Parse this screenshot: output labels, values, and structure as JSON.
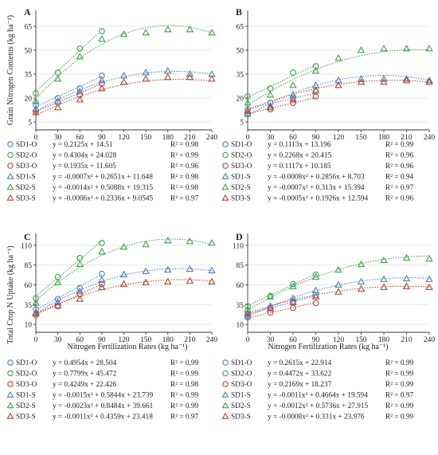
{
  "figure": {
    "ylabel_top": "Grain Nitrogen Contents (kg ha⁻¹)",
    "ylabel_bottom": "Total Crop N Uptake (kg ha⁻¹)",
    "xlabel": "Nitrogen Fertilization Rates (kg ha⁻¹)"
  },
  "colors": {
    "SD1": "#4a7fc1",
    "SD2": "#3fa34d",
    "SD3": "#b5462f"
  },
  "markers": {
    "O": "circle",
    "S": "triangle"
  },
  "chart_data": [
    {
      "panel": "A",
      "type": "scatter",
      "xlim": [
        0,
        240
      ],
      "ylim": [
        0,
        75
      ],
      "xticks": [
        0,
        30,
        60,
        90,
        120,
        150,
        180,
        210,
        240
      ],
      "yticks": [
        5,
        20,
        35,
        50,
        65
      ],
      "series": [
        {
          "name": "SD1-O",
          "color": "SD1",
          "marker": "O",
          "x": [
            0,
            30,
            60,
            90
          ],
          "y": [
            15.5,
            20,
            26,
            34
          ],
          "fit": {
            "a": 0,
            "b": 0.2125,
            "c": 14.51
          },
          "equation": "y = 0.2125x + 14.51",
          "r2": "R² = 0.98"
        },
        {
          "name": "SD2-O",
          "color": "SD2",
          "marker": "O",
          "x": [
            0,
            30,
            60,
            90
          ],
          "y": [
            23,
            36,
            51,
            62
          ],
          "fit": {
            "a": 0,
            "b": 0.4304,
            "c": 24.028
          },
          "equation": "y = 0.4304x + 24.028",
          "r2": "R² = 0.99"
        },
        {
          "name": "SD3-O",
          "color": "SD3",
          "marker": "O",
          "x": [
            0,
            30,
            60,
            90
          ],
          "y": [
            12,
            17,
            22,
            29
          ],
          "fit": {
            "a": 0,
            "b": 0.1935,
            "c": 11.605
          },
          "equation": "y = 0.1935x + 11.605",
          "r2": "R² = 0.96"
        },
        {
          "name": "SD1-S",
          "color": "SD1",
          "marker": "S",
          "x": [
            0,
            30,
            60,
            90,
            120,
            150,
            180,
            210,
            240
          ],
          "y": [
            13,
            18,
            24,
            31,
            34,
            36,
            37,
            35,
            35
          ],
          "fit": {
            "a": -0.0007,
            "b": 0.2651,
            "c": 11.648
          },
          "equation": "y = -0.0007x² + 0.2651x + 11.648",
          "r2": "R² = 0.98"
        },
        {
          "name": "SD2-S",
          "color": "SD2",
          "marker": "S",
          "x": [
            0,
            30,
            60,
            90,
            120,
            150,
            180,
            210,
            240
          ],
          "y": [
            18,
            32,
            46,
            57,
            60,
            61,
            63,
            63,
            61
          ],
          "fit": {
            "a": -0.0014,
            "b": 0.5088,
            "c": 19.315
          },
          "equation": "y = -0.0014x² + 0.5088x + 19.315",
          "r2": "R² = 0.98"
        },
        {
          "name": "SD3-S",
          "color": "SD3",
          "marker": "S",
          "x": [
            0,
            30,
            60,
            90,
            120,
            150,
            180,
            210,
            240
          ],
          "y": [
            11,
            14,
            19,
            26,
            30,
            32,
            33,
            33,
            32
          ],
          "fit": {
            "a": -0.0006,
            "b": 0.2336,
            "c": 9.0545
          },
          "equation": "y = -0.0006x² + 0.2336x + 9.0545",
          "r2": "R² = 0.97"
        }
      ]
    },
    {
      "panel": "B",
      "type": "scatter",
      "xlim": [
        0,
        240
      ],
      "ylim": [
        0,
        75
      ],
      "xticks": [
        0,
        30,
        60,
        90,
        120,
        150,
        180,
        210,
        240
      ],
      "yticks": [
        5,
        20,
        35,
        50,
        65
      ],
      "series": [
        {
          "name": "SD1-O",
          "color": "SD1",
          "marker": "O",
          "x": [
            0,
            30,
            60,
            90
          ],
          "y": [
            13,
            17,
            20,
            24
          ],
          "fit": {
            "a": 0,
            "b": 0.1113,
            "c": 13.196
          },
          "equation": "y = 0.1113x + 13.196",
          "r2": "R² = 0.99"
        },
        {
          "name": "SD2-O",
          "color": "SD2",
          "marker": "O",
          "x": [
            0,
            30,
            60,
            90
          ],
          "y": [
            21,
            26,
            36,
            40
          ],
          "fit": {
            "a": 0,
            "b": 0.2268,
            "c": 20.415
          },
          "equation": "y = 0.2268x + 20.415",
          "r2": "R² = 0.96"
        },
        {
          "name": "SD3-O",
          "color": "SD3",
          "marker": "O",
          "x": [
            0,
            30,
            60,
            90
          ],
          "y": [
            10,
            13,
            17,
            21
          ],
          "fit": {
            "a": 0,
            "b": 0.1117,
            "c": 10.185
          },
          "equation": "y = 0.1117x + 10.185",
          "r2": "R² = 0.96"
        },
        {
          "name": "SD1-S",
          "color": "SD1",
          "marker": "S",
          "x": [
            0,
            30,
            60,
            90,
            120,
            150,
            180,
            210,
            240
          ],
          "y": [
            10,
            15,
            22,
            28,
            31,
            32,
            32,
            32,
            31
          ],
          "fit": {
            "a": -0.0008,
            "b": 0.2856,
            "c": 8.703
          },
          "equation": "y = -0.0008x² + 0.2856x + 8.703",
          "r2": "R² = 0.94"
        },
        {
          "name": "SD2-S",
          "color": "SD2",
          "marker": "S",
          "x": [
            0,
            30,
            60,
            90,
            120,
            150,
            180,
            210,
            240
          ],
          "y": [
            17,
            22,
            28,
            37,
            45,
            50,
            51,
            51,
            51
          ],
          "fit": {
            "a": -0.0007,
            "b": 0.313,
            "c": 15.394
          },
          "equation": "y = -0.0007x² + 0.313x + 15.394",
          "r2": "R² = 0.97"
        },
        {
          "name": "SD3-S",
          "color": "SD3",
          "marker": "S",
          "x": [
            0,
            30,
            60,
            90,
            120,
            150,
            180,
            210,
            240
          ],
          "y": [
            12,
            14,
            19,
            25,
            28,
            30,
            30,
            31,
            30
          ],
          "fit": {
            "a": -0.0005,
            "b": 0.1926,
            "c": 12.594
          },
          "equation": "y = -0.0005x² + 0.1926x + 12.594",
          "r2": "R² = 0.96"
        }
      ]
    },
    {
      "panel": "C",
      "type": "scatter",
      "xlim": [
        0,
        240
      ],
      "ylim": [
        0,
        125
      ],
      "xticks": [
        0,
        30,
        60,
        90,
        120,
        150,
        180,
        210,
        240
      ],
      "yticks": [
        10,
        35,
        60,
        85,
        110
      ],
      "series": [
        {
          "name": "SD1-O",
          "color": "SD1",
          "marker": "O",
          "x": [
            0,
            30,
            60,
            90
          ],
          "y": [
            29,
            42,
            56,
            74
          ],
          "fit": {
            "a": 0,
            "b": 0.4954,
            "c": 28.504
          },
          "equation": "y = 0.4954x + 28.504",
          "r2": "R² = 0.99"
        },
        {
          "name": "SD2-O",
          "color": "SD2",
          "marker": "O",
          "x": [
            0,
            30,
            60,
            90
          ],
          "y": [
            43,
            70,
            94,
            113
          ],
          "fit": {
            "a": 0,
            "b": 0.7799,
            "c": 45.472
          },
          "equation": "y = 0.7799x + 45.472",
          "r2": "R² = 0.99"
        },
        {
          "name": "SD3-O",
          "color": "SD3",
          "marker": "O",
          "x": [
            0,
            30,
            60,
            90
          ],
          "y": [
            22,
            33,
            48,
            61
          ],
          "fit": {
            "a": 0,
            "b": 0.4249,
            "c": 22.426
          },
          "equation": "y = 0.4249x + 22.426",
          "r2": "R² = 0.98"
        },
        {
          "name": "SD1-S",
          "color": "SD1",
          "marker": "S",
          "x": [
            0,
            30,
            60,
            90,
            120,
            150,
            180,
            210,
            240
          ],
          "y": [
            25,
            38,
            52,
            66,
            73,
            77,
            79,
            80,
            78
          ],
          "fit": {
            "a": -0.0015,
            "b": 0.5844,
            "c": 23.739
          },
          "equation": "y = -0.0015x² + 0.5844x + 23.739",
          "r2": "R² = 0.99"
        },
        {
          "name": "SD2-S",
          "color": "SD2",
          "marker": "S",
          "x": [
            0,
            30,
            60,
            90,
            120,
            150,
            180,
            210,
            240
          ],
          "y": [
            37,
            63,
            86,
            102,
            108,
            111,
            116,
            115,
            113
          ],
          "fit": {
            "a": -0.0023,
            "b": 0.8484,
            "c": 39.661
          },
          "equation": "y = -0.0023x² + 0.8484x + 39.661",
          "r2": "R² = 0.99"
        },
        {
          "name": "SD3-S",
          "color": "SD3",
          "marker": "S",
          "x": [
            0,
            30,
            60,
            90,
            120,
            150,
            180,
            210,
            240
          ],
          "y": [
            24,
            34,
            42,
            57,
            61,
            63,
            64,
            65,
            64
          ],
          "fit": {
            "a": -0.0011,
            "b": 0.4359,
            "c": 23.418
          },
          "equation": "y = -0.0011x² + 0.4359x + 23.418",
          "r2": "R² = 0.97"
        }
      ]
    },
    {
      "panel": "D",
      "type": "scatter",
      "xlim": [
        0,
        240
      ],
      "ylim": [
        0,
        125
      ],
      "xticks": [
        0,
        30,
        60,
        90,
        120,
        150,
        180,
        210,
        240
      ],
      "yticks": [
        10,
        35,
        60,
        85,
        110
      ],
      "series": [
        {
          "name": "SD1-O",
          "color": "SD1",
          "marker": "O",
          "x": [
            0,
            30,
            60,
            90
          ],
          "y": [
            23,
            31,
            39,
            47
          ],
          "fit": {
            "a": 0,
            "b": 0.2615,
            "c": 22.914
          },
          "equation": "y = 0.2615x + 22.914",
          "r2": "R² = 0.99"
        },
        {
          "name": "SD2-O",
          "color": "SD2",
          "marker": "O",
          "x": [
            0,
            30,
            60,
            90
          ],
          "y": [
            33,
            46,
            61,
            73
          ],
          "fit": {
            "a": 0,
            "b": 0.4472,
            "c": 33.622
          },
          "equation": "y = 0.4472x + 33.622",
          "r2": "R² = 0.99"
        },
        {
          "name": "SD3-O",
          "color": "SD3",
          "marker": "O",
          "x": [
            0,
            30,
            60,
            90
          ],
          "y": [
            19,
            25,
            31,
            37
          ],
          "fit": {
            "a": 0,
            "b": 0.2169,
            "c": 18.237
          },
          "equation": "y = 0.2169x + 18.237",
          "r2": "R² = 0.99"
        },
        {
          "name": "SD1-S",
          "color": "SD1",
          "marker": "S",
          "x": [
            0,
            30,
            60,
            90,
            120,
            150,
            180,
            210,
            240
          ],
          "y": [
            21,
            33,
            43,
            53,
            60,
            64,
            67,
            68,
            67
          ],
          "fit": {
            "a": -0.0011,
            "b": 0.4664,
            "c": 19.594
          },
          "equation": "y = -0.0011x² + 0.4664x + 19.594",
          "r2": "R² = 0.97"
        },
        {
          "name": "SD2-S",
          "color": "SD2",
          "marker": "S",
          "x": [
            0,
            30,
            60,
            90,
            120,
            150,
            180,
            210,
            240
          ],
          "y": [
            29,
            45,
            58,
            70,
            79,
            86,
            91,
            94,
            93
          ],
          "fit": {
            "a": -0.0012,
            "b": 0.5736,
            "c": 27.915
          },
          "equation": "y = -0.0012x² + 0.5736x + 27.915",
          "r2": "R² = 0.99"
        },
        {
          "name": "SD3-S",
          "color": "SD3",
          "marker": "S",
          "x": [
            0,
            30,
            60,
            90,
            120,
            150,
            180,
            210,
            240
          ],
          "y": [
            24,
            30,
            38,
            45,
            51,
            55,
            57,
            58,
            57
          ],
          "fit": {
            "a": -0.0008,
            "b": 0.331,
            "c": 23.976
          },
          "equation": "y = -0.0008x² + 0.331x + 23.976",
          "r2": "R² = 0.99"
        }
      ]
    }
  ]
}
